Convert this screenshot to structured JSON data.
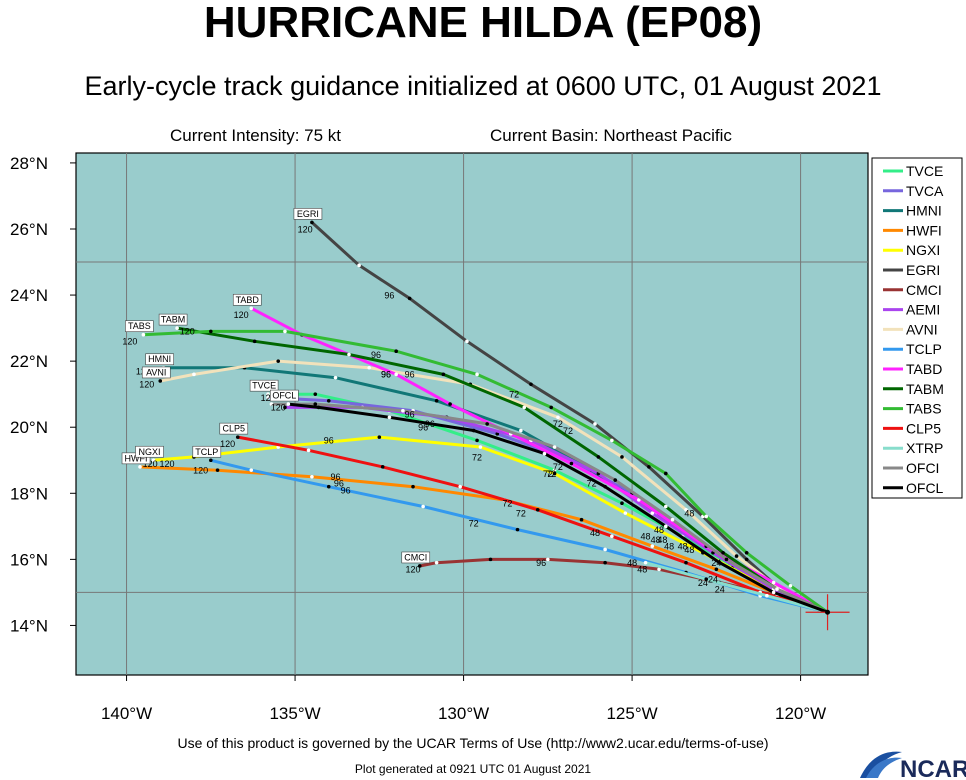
{
  "header": {
    "title": "HURRICANE HILDA (EP08)",
    "subtitle": "Early-cycle track guidance initialized at 0600 UTC, 01 August 2021",
    "intensity": "Current Intensity: 75 kt",
    "basin": "Current Basin: Northeast Pacific"
  },
  "footer": {
    "terms": "Use of this product is governed by the UCAR Terms of Use (http://www2.ucar.edu/terms-of-use)",
    "generated": "Plot generated at 0921 UTC   01 August 2021",
    "logo_text": "NCAR"
  },
  "colors": {
    "ocean": "#99cccc",
    "grid": "#777777",
    "storm_marker": "#dd2222"
  },
  "chart_data": {
    "type": "line",
    "title": "HURRICANE HILDA (EP08)",
    "subtitle": "Early-cycle track guidance initialized at 0600 UTC, 01 August 2021",
    "xlim": [
      -141.5,
      -118.0
    ],
    "ylim": [
      12.5,
      28.3
    ],
    "x_ticks": [
      -140,
      -135,
      -130,
      -125,
      -120
    ],
    "x_tick_labels": [
      "140°W",
      "135°W",
      "130°W",
      "125°W",
      "120°W"
    ],
    "y_ticks": [
      14,
      16,
      18,
      20,
      22,
      24,
      26,
      28
    ],
    "y_tick_labels": [
      "14°N",
      "16°N",
      "18°N",
      "20°N",
      "22°N",
      "24°N",
      "26°N",
      "28°N"
    ],
    "grid": true,
    "legend_position": "right",
    "storm_position": [
      -119.2,
      14.4
    ],
    "series": [
      {
        "name": "TVCE",
        "color": "#33ee88",
        "end_label": "TVCE",
        "points": [
          [
            -119.2,
            14.4
          ],
          [
            -120.6,
            15.0
          ],
          [
            -122.0,
            15.8
          ],
          [
            -123.5,
            16.7
          ],
          [
            -125.3,
            17.7
          ],
          [
            -127.3,
            18.7
          ],
          [
            -129.6,
            19.6
          ],
          [
            -132.2,
            20.5
          ],
          [
            -134.4,
            21.0
          ],
          [
            -135.8,
            21.0
          ]
        ],
        "hour_labels": [
          {
            "lon": -122.4,
            "lat": 15.0,
            "text": "24"
          },
          {
            "lon": -124.3,
            "lat": 16.5,
            "text": "48"
          },
          {
            "lon": -127.4,
            "lat": 18.5,
            "text": "72"
          },
          {
            "lon": -131.6,
            "lat": 20.3,
            "text": "96"
          },
          {
            "lon": -135.8,
            "lat": 20.8,
            "text": "120"
          }
        ]
      },
      {
        "name": "TVCA",
        "color": "#7766dd",
        "points": [
          [
            -119.2,
            14.4
          ],
          [
            -120.7,
            15.0
          ],
          [
            -122.1,
            15.9
          ],
          [
            -123.5,
            16.9
          ],
          [
            -125.0,
            18.0
          ],
          [
            -126.8,
            19.0
          ],
          [
            -129.0,
            19.8
          ],
          [
            -131.5,
            20.5
          ],
          [
            -134.0,
            20.8
          ],
          [
            -135.8,
            20.9
          ]
        ]
      },
      {
        "name": "HMNI",
        "color": "#117777",
        "end_label": "HMNI",
        "points": [
          [
            -119.2,
            14.4
          ],
          [
            -120.8,
            15.1
          ],
          [
            -122.5,
            16.2
          ],
          [
            -124.3,
            17.4
          ],
          [
            -126.2,
            18.7
          ],
          [
            -128.3,
            19.9
          ],
          [
            -130.8,
            20.8
          ],
          [
            -133.8,
            21.5
          ],
          [
            -136.5,
            21.8
          ],
          [
            -138.9,
            21.8
          ]
        ],
        "hour_labels": [
          {
            "lon": -123.9,
            "lat": 16.3,
            "text": "48"
          },
          {
            "lon": -127.2,
            "lat": 18.7,
            "text": "72"
          },
          {
            "lon": -131.0,
            "lat": 20.0,
            "text": "96"
          },
          {
            "lon": -139.5,
            "lat": 21.6,
            "text": "120"
          }
        ]
      },
      {
        "name": "HWFI",
        "color": "#ff8800",
        "end_label": "HWFI",
        "points": [
          [
            -119.2,
            14.4
          ],
          [
            -120.8,
            15.0
          ],
          [
            -122.5,
            15.7
          ],
          [
            -124.4,
            16.4
          ],
          [
            -126.5,
            17.2
          ],
          [
            -128.8,
            17.8
          ],
          [
            -131.5,
            18.2
          ],
          [
            -134.5,
            18.5
          ],
          [
            -137.3,
            18.7
          ],
          [
            -139.6,
            18.8
          ]
        ],
        "hour_labels": [
          {
            "lon": -122.9,
            "lat": 15.2,
            "text": "24"
          },
          {
            "lon": -124.6,
            "lat": 16.6,
            "text": "48"
          },
          {
            "lon": -128.7,
            "lat": 17.6,
            "text": "72"
          },
          {
            "lon": -133.7,
            "lat": 18.2,
            "text": "96"
          },
          {
            "lon": -139.3,
            "lat": 18.8,
            "text": "120"
          }
        ]
      },
      {
        "name": "NGXI",
        "color": "#ffff00",
        "end_label": "NGXI",
        "points": [
          [
            -119.2,
            14.4
          ],
          [
            -120.9,
            15.1
          ],
          [
            -122.9,
            16.2
          ],
          [
            -125.2,
            17.4
          ],
          [
            -127.3,
            18.6
          ],
          [
            -129.5,
            19.4
          ],
          [
            -132.5,
            19.7
          ],
          [
            -135.5,
            19.4
          ],
          [
            -138.0,
            19.1
          ],
          [
            -139.2,
            19.0
          ]
        ],
        "hour_labels": [
          {
            "lon": -123.3,
            "lat": 16.2,
            "text": "48"
          },
          {
            "lon": -129.6,
            "lat": 19.0,
            "text": "72"
          },
          {
            "lon": -134.0,
            "lat": 19.5,
            "text": "96"
          },
          {
            "lon": -138.8,
            "lat": 18.8,
            "text": "120"
          }
        ]
      },
      {
        "name": "EGRI",
        "color": "#444444",
        "end_label": "EGRI",
        "points": [
          [
            -119.2,
            14.4
          ],
          [
            -120.5,
            15.0
          ],
          [
            -121.6,
            16.0
          ],
          [
            -122.9,
            17.3
          ],
          [
            -124.5,
            18.8
          ],
          [
            -126.1,
            20.1
          ],
          [
            -128.0,
            21.3
          ],
          [
            -129.9,
            22.6
          ],
          [
            -131.6,
            23.9
          ],
          [
            -133.1,
            24.9
          ],
          [
            -134.5,
            26.2
          ]
        ],
        "hour_labels": [
          {
            "lon": -122.5,
            "lat": 15.8,
            "text": "24"
          },
          {
            "lon": -127.2,
            "lat": 20.0,
            "text": "72"
          },
          {
            "lon": -132.2,
            "lat": 23.9,
            "text": "96"
          },
          {
            "lon": -134.7,
            "lat": 25.9,
            "text": "120"
          }
        ]
      },
      {
        "name": "CMCI",
        "color": "#993333",
        "end_label": "CMCI",
        "points": [
          [
            -119.2,
            14.4
          ],
          [
            -120.7,
            14.9
          ],
          [
            -122.4,
            15.3
          ],
          [
            -124.2,
            15.7
          ],
          [
            -125.8,
            15.9
          ],
          [
            -127.5,
            16.0
          ],
          [
            -129.2,
            16.0
          ],
          [
            -130.8,
            15.9
          ],
          [
            -131.3,
            15.8
          ]
        ],
        "hour_labels": [
          {
            "lon": -124.7,
            "lat": 15.6,
            "text": "48"
          },
          {
            "lon": -127.7,
            "lat": 15.8,
            "text": "96"
          },
          {
            "lon": -131.5,
            "lat": 15.6,
            "text": "120"
          }
        ]
      },
      {
        "name": "AEMI",
        "color": "#aa44ee",
        "points": [
          [
            -119.2,
            14.4
          ],
          [
            -120.8,
            15.1
          ],
          [
            -122.6,
            16.2
          ],
          [
            -124.4,
            17.4
          ],
          [
            -126.0,
            18.6
          ],
          [
            -128.0,
            19.6
          ],
          [
            -130.5,
            20.3
          ],
          [
            -133.0,
            20.6
          ],
          [
            -135.3,
            20.6
          ]
        ]
      },
      {
        "name": "AVNI",
        "color": "#f2e2bb",
        "end_label": "AVNI",
        "points": [
          [
            -119.2,
            14.4
          ],
          [
            -120.6,
            15.1
          ],
          [
            -121.9,
            16.1
          ],
          [
            -123.4,
            17.5
          ],
          [
            -125.3,
            19.1
          ],
          [
            -127.2,
            20.3
          ],
          [
            -129.8,
            21.3
          ],
          [
            -132.8,
            21.8
          ],
          [
            -135.5,
            22.0
          ],
          [
            -138.0,
            21.6
          ],
          [
            -139.0,
            21.4
          ]
        ],
        "hour_labels": [
          {
            "lon": -124.1,
            "lat": 16.5,
            "text": "48"
          },
          {
            "lon": -126.9,
            "lat": 19.8,
            "text": "72"
          },
          {
            "lon": -132.3,
            "lat": 21.5,
            "text": "96"
          },
          {
            "lon": -139.4,
            "lat": 21.2,
            "text": "120"
          }
        ]
      },
      {
        "name": "TCLP",
        "color": "#3399ee",
        "end_label": "TCLP",
        "points": [
          [
            -119.2,
            14.4
          ],
          [
            -121.2,
            14.9
          ],
          [
            -123.4,
            15.6
          ],
          [
            -125.8,
            16.3
          ],
          [
            -128.4,
            16.9
          ],
          [
            -131.2,
            17.6
          ],
          [
            -134.0,
            18.2
          ],
          [
            -136.3,
            18.7
          ],
          [
            -137.5,
            19.0
          ]
        ],
        "hour_labels": [
          {
            "lon": -125.0,
            "lat": 15.8,
            "text": "48"
          },
          {
            "lon": -129.7,
            "lat": 17.0,
            "text": "72"
          },
          {
            "lon": -133.5,
            "lat": 18.0,
            "text": "96"
          },
          {
            "lon": -137.8,
            "lat": 18.6,
            "text": "120"
          }
        ]
      },
      {
        "name": "TABD",
        "color": "#ff22ff",
        "end_label": "TABD",
        "points": [
          [
            -119.2,
            14.4
          ],
          [
            -120.8,
            15.3
          ],
          [
            -122.8,
            16.4
          ],
          [
            -124.8,
            17.8
          ],
          [
            -126.8,
            18.9
          ],
          [
            -128.6,
            19.8
          ],
          [
            -130.4,
            20.7
          ],
          [
            -132.0,
            21.6
          ],
          [
            -134.8,
            22.8
          ],
          [
            -136.3,
            23.6
          ]
        ],
        "hour_labels": [
          {
            "lon": -126.2,
            "lat": 18.2,
            "text": "72"
          },
          {
            "lon": -131.6,
            "lat": 21.5,
            "text": "96"
          },
          {
            "lon": -136.6,
            "lat": 23.3,
            "text": "120"
          }
        ]
      },
      {
        "name": "TABM",
        "color": "#006600",
        "end_label": "TABM",
        "points": [
          [
            -119.2,
            14.4
          ],
          [
            -120.7,
            15.1
          ],
          [
            -122.3,
            16.2
          ],
          [
            -124.0,
            17.6
          ],
          [
            -126.0,
            19.1
          ],
          [
            -128.2,
            20.6
          ],
          [
            -130.6,
            21.6
          ],
          [
            -133.4,
            22.2
          ],
          [
            -136.2,
            22.6
          ],
          [
            -138.5,
            23.0
          ]
        ],
        "hour_labels": [
          {
            "lon": -123.5,
            "lat": 16.3,
            "text": "48"
          },
          {
            "lon": -132.3,
            "lat": 21.5,
            "text": "96"
          },
          {
            "lon": -138.2,
            "lat": 22.8,
            "text": "120"
          }
        ]
      },
      {
        "name": "TABS",
        "color": "#33bb33",
        "end_label": "TABS",
        "points": [
          [
            -119.2,
            14.4
          ],
          [
            -120.3,
            15.2
          ],
          [
            -121.6,
            16.2
          ],
          [
            -122.8,
            17.3
          ],
          [
            -124.0,
            18.6
          ],
          [
            -125.6,
            19.6
          ],
          [
            -127.4,
            20.6
          ],
          [
            -129.6,
            21.6
          ],
          [
            -132.0,
            22.3
          ],
          [
            -135.3,
            22.9
          ],
          [
            -137.5,
            22.9
          ],
          [
            -139.5,
            22.8
          ]
        ],
        "hour_labels": [
          {
            "lon": -123.3,
            "lat": 17.3,
            "text": "48"
          },
          {
            "lon": -128.5,
            "lat": 20.9,
            "text": "72"
          },
          {
            "lon": -132.6,
            "lat": 22.1,
            "text": "96"
          },
          {
            "lon": -139.9,
            "lat": 22.5,
            "text": "120"
          }
        ]
      },
      {
        "name": "CLP5",
        "color": "#ee1111",
        "end_label": "CLP5",
        "points": [
          [
            -119.2,
            14.4
          ],
          [
            -121.2,
            15.0
          ],
          [
            -123.4,
            15.9
          ],
          [
            -125.6,
            16.7
          ],
          [
            -127.8,
            17.5
          ],
          [
            -130.1,
            18.2
          ],
          [
            -132.4,
            18.8
          ],
          [
            -134.6,
            19.3
          ],
          [
            -136.7,
            19.7
          ]
        ],
        "hour_labels": [
          {
            "lon": -126.1,
            "lat": 16.7,
            "text": "48"
          },
          {
            "lon": -128.3,
            "lat": 17.3,
            "text": "72"
          },
          {
            "lon": -133.8,
            "lat": 18.4,
            "text": "96"
          },
          {
            "lon": -137.0,
            "lat": 19.4,
            "text": "120"
          }
        ]
      },
      {
        "name": "XTRP",
        "color": "#88ddcc",
        "points": [
          [
            -119.2,
            14.4
          ],
          [
            -121.0,
            14.9
          ],
          [
            -122.8,
            15.4
          ],
          [
            -124.6,
            15.9
          ]
        ]
      },
      {
        "name": "OFCI",
        "color": "#888888",
        "points": [
          [
            -119.2,
            14.4
          ],
          [
            -120.7,
            15.1
          ],
          [
            -122.2,
            16.0
          ],
          [
            -123.8,
            17.2
          ],
          [
            -125.5,
            18.4
          ],
          [
            -127.3,
            19.4
          ],
          [
            -129.3,
            20.1
          ],
          [
            -131.8,
            20.5
          ],
          [
            -134.4,
            20.7
          ],
          [
            -135.7,
            20.7
          ]
        ]
      },
      {
        "name": "OFCL",
        "color": "#000000",
        "end_label": "OFCL",
        "points": [
          [
            -119.2,
            14.4
          ],
          [
            -120.8,
            15.0
          ],
          [
            -122.4,
            15.9
          ],
          [
            -124.0,
            17.0
          ],
          [
            -125.8,
            18.2
          ],
          [
            -127.6,
            19.2
          ],
          [
            -129.7,
            19.9
          ],
          [
            -132.2,
            20.3
          ],
          [
            -134.3,
            20.6
          ],
          [
            -135.2,
            20.7
          ]
        ],
        "hour_labels": [
          {
            "lon": -122.6,
            "lat": 15.3,
            "text": "24"
          },
          {
            "lon": -124.2,
            "lat": 16.8,
            "text": "48"
          },
          {
            "lon": -127.5,
            "lat": 18.5,
            "text": "72"
          },
          {
            "lon": -131.2,
            "lat": 19.9,
            "text": "96"
          },
          {
            "lon": -135.5,
            "lat": 20.5,
            "text": "120"
          }
        ]
      }
    ]
  }
}
